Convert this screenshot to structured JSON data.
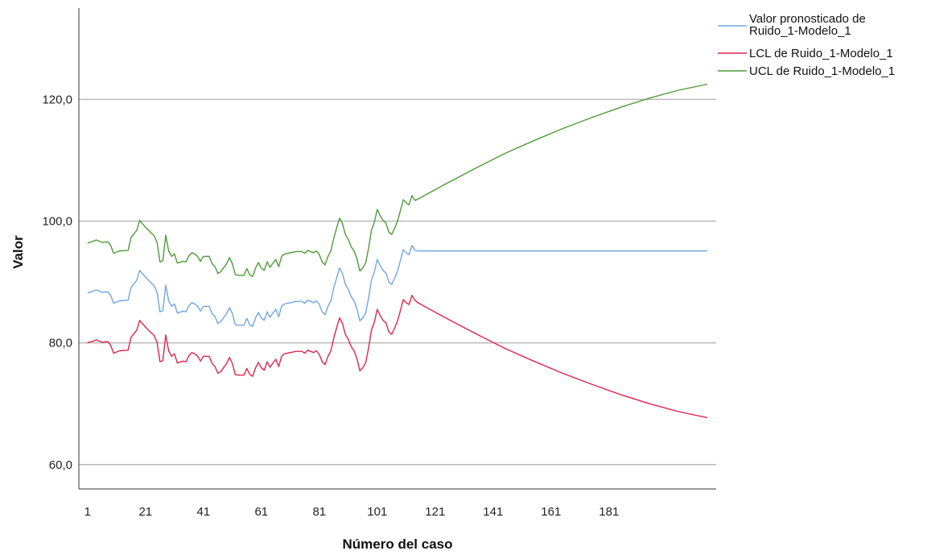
{
  "chart_data": {
    "type": "line",
    "xlabel": "Número del caso",
    "ylabel": "Valor",
    "x_ticks": [
      "1",
      "21",
      "41",
      "61",
      "81",
      "101",
      "121",
      "141",
      "161",
      "181"
    ],
    "y_ticks": [
      "60,0",
      "80,0",
      "100,0",
      "120,0"
    ],
    "y_tick_values": [
      60,
      80,
      100,
      120
    ],
    "xlim": [
      -2,
      218
    ],
    "ylim": [
      56,
      135
    ],
    "grid": "horizontal",
    "legend_position": "top-right",
    "series": [
      {
        "name": "Valor pronosticado de Ruido_1-Modelo_1",
        "color": "#6fa6e6",
        "points": [
          [
            1,
            88.2
          ],
          [
            3,
            88.5
          ],
          [
            4,
            88.7
          ],
          [
            6,
            88.3
          ],
          [
            8,
            88.4
          ],
          [
            9,
            87.8
          ],
          [
            10,
            86.5
          ],
          [
            12,
            86.9
          ],
          [
            15,
            87.0
          ],
          [
            16,
            89.1
          ],
          [
            18,
            90.3
          ],
          [
            19,
            91.9
          ],
          [
            21,
            90.8
          ],
          [
            22,
            90.3
          ],
          [
            24,
            89.4
          ],
          [
            25,
            88.3
          ],
          [
            26,
            85.1
          ],
          [
            27,
            85.3
          ],
          [
            28,
            89.5
          ],
          [
            29,
            86.9
          ],
          [
            30,
            86.0
          ],
          [
            31,
            86.4
          ],
          [
            32,
            84.9
          ],
          [
            34,
            85.2
          ],
          [
            35,
            85.1
          ],
          [
            36,
            86.1
          ],
          [
            37,
            86.6
          ],
          [
            38,
            86.4
          ],
          [
            39,
            86.0
          ],
          [
            40,
            85.2
          ],
          [
            41,
            86.0
          ],
          [
            43,
            86.0
          ],
          [
            44,
            84.8
          ],
          [
            45,
            84.3
          ],
          [
            46,
            83.2
          ],
          [
            47,
            83.5
          ],
          [
            49,
            84.8
          ],
          [
            50,
            85.8
          ],
          [
            51,
            84.8
          ],
          [
            52,
            83.0
          ],
          [
            53,
            82.9
          ],
          [
            55,
            82.9
          ],
          [
            56,
            84.0
          ],
          [
            57,
            83.0
          ],
          [
            58,
            82.7
          ],
          [
            59,
            84.1
          ],
          [
            60,
            85.0
          ],
          [
            61,
            84.1
          ],
          [
            62,
            83.7
          ],
          [
            63,
            85.1
          ],
          [
            64,
            84.2
          ],
          [
            65,
            84.9
          ],
          [
            66,
            85.5
          ],
          [
            67,
            84.3
          ],
          [
            68,
            86.0
          ],
          [
            69,
            86.4
          ],
          [
            71,
            86.6
          ],
          [
            73,
            86.8
          ],
          [
            75,
            86.8
          ],
          [
            76,
            86.5
          ],
          [
            77,
            87.0
          ],
          [
            78,
            86.8
          ],
          [
            79,
            86.6
          ],
          [
            80,
            86.9
          ],
          [
            81,
            86.3
          ],
          [
            82,
            85.1
          ],
          [
            83,
            84.6
          ],
          [
            84,
            86.0
          ],
          [
            85,
            86.9
          ],
          [
            86,
            89.0
          ],
          [
            87,
            90.7
          ],
          [
            88,
            92.3
          ],
          [
            89,
            91.4
          ],
          [
            90,
            89.6
          ],
          [
            91,
            88.8
          ],
          [
            92,
            87.6
          ],
          [
            93,
            86.9
          ],
          [
            94,
            85.6
          ],
          [
            95,
            83.6
          ],
          [
            96,
            84.1
          ],
          [
            97,
            84.9
          ],
          [
            98,
            87.3
          ],
          [
            99,
            90.3
          ],
          [
            100,
            91.6
          ],
          [
            101,
            93.7
          ],
          [
            102,
            92.7
          ],
          [
            103,
            91.9
          ],
          [
            104,
            91.5
          ],
          [
            105,
            90.0
          ],
          [
            106,
            89.6
          ],
          [
            107,
            90.6
          ],
          [
            108,
            91.8
          ],
          [
            109,
            93.5
          ],
          [
            110,
            95.3
          ],
          [
            111,
            94.8
          ],
          [
            112,
            94.5
          ],
          [
            113,
            96.0
          ],
          [
            114,
            95.2
          ],
          [
            115,
            95.1
          ],
          [
            215,
            95.1
          ]
        ]
      },
      {
        "name": "LCL de Ruido_1-Modelo_1",
        "color": "#e0244c",
        "points": [
          [
            1,
            80.0
          ],
          [
            3,
            80.3
          ],
          [
            4,
            80.5
          ],
          [
            6,
            80.1
          ],
          [
            8,
            80.2
          ],
          [
            9,
            79.6
          ],
          [
            10,
            78.3
          ],
          [
            12,
            78.7
          ],
          [
            15,
            78.8
          ],
          [
            16,
            80.9
          ],
          [
            18,
            82.1
          ],
          [
            19,
            83.7
          ],
          [
            21,
            82.6
          ],
          [
            22,
            82.1
          ],
          [
            24,
            81.2
          ],
          [
            25,
            80.1
          ],
          [
            26,
            76.9
          ],
          [
            27,
            77.1
          ],
          [
            28,
            81.3
          ],
          [
            29,
            78.7
          ],
          [
            30,
            77.8
          ],
          [
            31,
            78.2
          ],
          [
            32,
            76.7
          ],
          [
            34,
            77.0
          ],
          [
            35,
            76.9
          ],
          [
            36,
            77.9
          ],
          [
            37,
            78.4
          ],
          [
            38,
            78.2
          ],
          [
            39,
            77.8
          ],
          [
            40,
            77.0
          ],
          [
            41,
            77.8
          ],
          [
            43,
            77.8
          ],
          [
            44,
            76.6
          ],
          [
            45,
            76.1
          ],
          [
            46,
            75.0
          ],
          [
            47,
            75.3
          ],
          [
            49,
            76.6
          ],
          [
            50,
            77.6
          ],
          [
            51,
            76.6
          ],
          [
            52,
            74.8
          ],
          [
            53,
            74.7
          ],
          [
            55,
            74.7
          ],
          [
            56,
            75.8
          ],
          [
            57,
            74.8
          ],
          [
            58,
            74.5
          ],
          [
            59,
            75.9
          ],
          [
            60,
            76.8
          ],
          [
            61,
            75.9
          ],
          [
            62,
            75.5
          ],
          [
            63,
            76.9
          ],
          [
            64,
            76.0
          ],
          [
            65,
            76.7
          ],
          [
            66,
            77.3
          ],
          [
            67,
            76.1
          ],
          [
            68,
            77.8
          ],
          [
            69,
            78.2
          ],
          [
            71,
            78.4
          ],
          [
            73,
            78.6
          ],
          [
            75,
            78.6
          ],
          [
            76,
            78.3
          ],
          [
            77,
            78.8
          ],
          [
            78,
            78.6
          ],
          [
            79,
            78.4
          ],
          [
            80,
            78.7
          ],
          [
            81,
            78.1
          ],
          [
            82,
            76.9
          ],
          [
            83,
            76.4
          ],
          [
            84,
            77.8
          ],
          [
            85,
            78.7
          ],
          [
            86,
            80.8
          ],
          [
            87,
            82.5
          ],
          [
            88,
            84.1
          ],
          [
            89,
            83.2
          ],
          [
            90,
            81.4
          ],
          [
            91,
            80.6
          ],
          [
            92,
            79.4
          ],
          [
            93,
            78.7
          ],
          [
            94,
            77.4
          ],
          [
            95,
            75.4
          ],
          [
            96,
            75.9
          ],
          [
            97,
            76.7
          ],
          [
            98,
            79.1
          ],
          [
            99,
            82.1
          ],
          [
            100,
            83.4
          ],
          [
            101,
            85.5
          ],
          [
            102,
            84.5
          ],
          [
            103,
            83.7
          ],
          [
            104,
            83.3
          ],
          [
            105,
            81.8
          ],
          [
            106,
            81.4
          ],
          [
            107,
            82.4
          ],
          [
            108,
            83.6
          ],
          [
            109,
            85.3
          ],
          [
            110,
            87.1
          ],
          [
            111,
            86.6
          ],
          [
            112,
            86.3
          ],
          [
            113,
            87.8
          ],
          [
            114,
            87.0
          ],
          [
            115,
            86.6
          ],
          [
            125,
            84.0
          ],
          [
            135,
            81.5
          ],
          [
            145,
            79.1
          ],
          [
            155,
            77.0
          ],
          [
            165,
            75.0
          ],
          [
            175,
            73.2
          ],
          [
            185,
            71.5
          ],
          [
            195,
            70.0
          ],
          [
            205,
            68.7
          ],
          [
            215,
            67.7
          ]
        ]
      },
      {
        "name": "UCL de Ruido_1-Modelo_1",
        "color": "#4e9b38",
        "points": [
          [
            1,
            96.4
          ],
          [
            3,
            96.7
          ],
          [
            4,
            96.9
          ],
          [
            6,
            96.5
          ],
          [
            8,
            96.6
          ],
          [
            9,
            96.0
          ],
          [
            10,
            94.7
          ],
          [
            12,
            95.1
          ],
          [
            15,
            95.2
          ],
          [
            16,
            97.3
          ],
          [
            18,
            98.5
          ],
          [
            19,
            100.1
          ],
          [
            21,
            99.0
          ],
          [
            22,
            98.5
          ],
          [
            24,
            97.6
          ],
          [
            25,
            96.5
          ],
          [
            26,
            93.3
          ],
          [
            27,
            93.5
          ],
          [
            28,
            97.7
          ],
          [
            29,
            95.1
          ],
          [
            30,
            94.2
          ],
          [
            31,
            94.6
          ],
          [
            32,
            93.1
          ],
          [
            34,
            93.4
          ],
          [
            35,
            93.3
          ],
          [
            36,
            94.3
          ],
          [
            37,
            94.8
          ],
          [
            38,
            94.6
          ],
          [
            39,
            94.2
          ],
          [
            40,
            93.4
          ],
          [
            41,
            94.2
          ],
          [
            43,
            94.2
          ],
          [
            44,
            93.0
          ],
          [
            45,
            92.5
          ],
          [
            46,
            91.4
          ],
          [
            47,
            91.7
          ],
          [
            49,
            93.0
          ],
          [
            50,
            94.0
          ],
          [
            51,
            93.0
          ],
          [
            52,
            91.2
          ],
          [
            53,
            91.1
          ],
          [
            55,
            91.1
          ],
          [
            56,
            92.2
          ],
          [
            57,
            91.2
          ],
          [
            58,
            90.9
          ],
          [
            59,
            92.3
          ],
          [
            60,
            93.2
          ],
          [
            61,
            92.3
          ],
          [
            62,
            91.9
          ],
          [
            63,
            93.3
          ],
          [
            64,
            92.4
          ],
          [
            65,
            93.1
          ],
          [
            66,
            93.7
          ],
          [
            67,
            92.5
          ],
          [
            68,
            94.2
          ],
          [
            69,
            94.6
          ],
          [
            71,
            94.8
          ],
          [
            73,
            95.0
          ],
          [
            75,
            95.0
          ],
          [
            76,
            94.7
          ],
          [
            77,
            95.2
          ],
          [
            78,
            95.0
          ],
          [
            79,
            94.8
          ],
          [
            80,
            95.1
          ],
          [
            81,
            94.5
          ],
          [
            82,
            93.3
          ],
          [
            83,
            92.8
          ],
          [
            84,
            94.2
          ],
          [
            85,
            95.1
          ],
          [
            86,
            97.2
          ],
          [
            87,
            98.9
          ],
          [
            88,
            100.5
          ],
          [
            89,
            99.6
          ],
          [
            90,
            97.8
          ],
          [
            91,
            97.0
          ],
          [
            92,
            95.8
          ],
          [
            93,
            95.1
          ],
          [
            94,
            93.8
          ],
          [
            95,
            91.8
          ],
          [
            96,
            92.3
          ],
          [
            97,
            93.1
          ],
          [
            98,
            95.5
          ],
          [
            99,
            98.5
          ],
          [
            100,
            99.8
          ],
          [
            101,
            101.9
          ],
          [
            102,
            100.9
          ],
          [
            103,
            100.1
          ],
          [
            104,
            99.7
          ],
          [
            105,
            98.2
          ],
          [
            106,
            97.8
          ],
          [
            107,
            98.8
          ],
          [
            108,
            100.0
          ],
          [
            109,
            101.7
          ],
          [
            110,
            103.5
          ],
          [
            111,
            103.0
          ],
          [
            112,
            102.7
          ],
          [
            113,
            104.2
          ],
          [
            114,
            103.4
          ],
          [
            115,
            103.6
          ],
          [
            125,
            106.2
          ],
          [
            135,
            108.7
          ],
          [
            145,
            111.1
          ],
          [
            155,
            113.2
          ],
          [
            165,
            115.2
          ],
          [
            175,
            117.0
          ],
          [
            185,
            118.7
          ],
          [
            195,
            120.2
          ],
          [
            205,
            121.5
          ],
          [
            215,
            122.5
          ]
        ]
      }
    ]
  }
}
